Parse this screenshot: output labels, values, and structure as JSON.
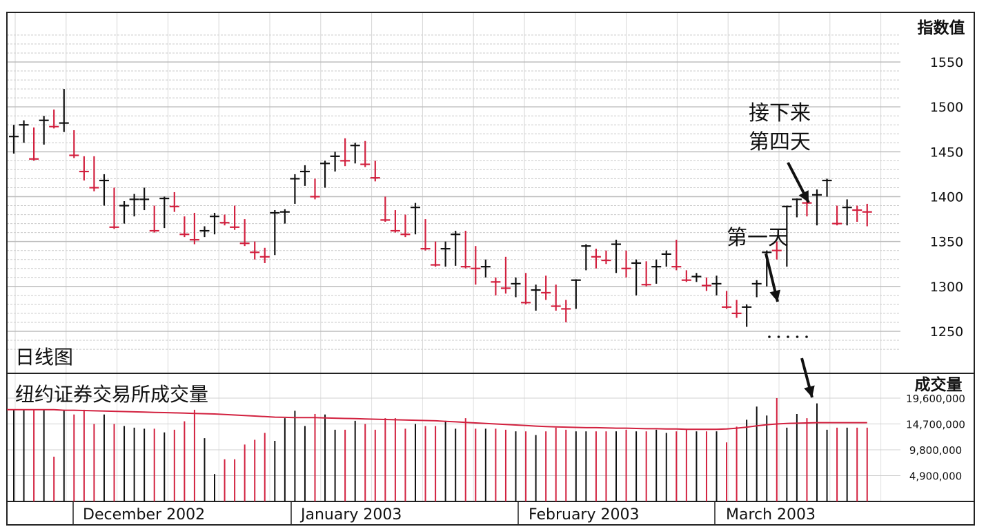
{
  "chart_data": [
    {
      "type": "ohlc",
      "y_axis_title": "指数值",
      "panel_label": "日线图",
      "yticks": [
        1250,
        1300,
        1350,
        1400,
        1450,
        1500,
        1550
      ],
      "ylim": [
        1215,
        1580
      ],
      "grid": true,
      "months": [
        "December 2002",
        "January 2003",
        "February 2003",
        "March 2003"
      ],
      "up_color": "#111111",
      "down_color": "#d2213f",
      "bars": [
        {
          "h": 1480,
          "l": 1448,
          "c": 1467,
          "dir": "up"
        },
        {
          "h": 1485,
          "l": 1460,
          "c": 1480,
          "dir": "up"
        },
        {
          "h": 1477,
          "l": 1440,
          "c": 1442,
          "dir": "down"
        },
        {
          "h": 1490,
          "l": 1458,
          "c": 1485,
          "dir": "up"
        },
        {
          "h": 1497,
          "l": 1476,
          "c": 1478,
          "dir": "down"
        },
        {
          "h": 1520,
          "l": 1472,
          "c": 1482,
          "dir": "up"
        },
        {
          "h": 1474,
          "l": 1443,
          "c": 1446,
          "dir": "down"
        },
        {
          "h": 1445,
          "l": 1418,
          "c": 1428,
          "dir": "down"
        },
        {
          "h": 1445,
          "l": 1406,
          "c": 1410,
          "dir": "down"
        },
        {
          "h": 1425,
          "l": 1390,
          "c": 1418,
          "dir": "up"
        },
        {
          "h": 1410,
          "l": 1364,
          "c": 1366,
          "dir": "down"
        },
        {
          "h": 1395,
          "l": 1370,
          "c": 1390,
          "dir": "up"
        },
        {
          "h": 1403,
          "l": 1378,
          "c": 1397,
          "dir": "up"
        },
        {
          "h": 1410,
          "l": 1385,
          "c": 1397,
          "dir": "up"
        },
        {
          "h": 1390,
          "l": 1360,
          "c": 1362,
          "dir": "down"
        },
        {
          "h": 1400,
          "l": 1365,
          "c": 1398,
          "dir": "up"
        },
        {
          "h": 1405,
          "l": 1383,
          "c": 1389,
          "dir": "down"
        },
        {
          "h": 1378,
          "l": 1355,
          "c": 1358,
          "dir": "down"
        },
        {
          "h": 1382,
          "l": 1347,
          "c": 1352,
          "dir": "down"
        },
        {
          "h": 1367,
          "l": 1355,
          "c": 1362,
          "dir": "up"
        },
        {
          "h": 1382,
          "l": 1358,
          "c": 1378,
          "dir": "up"
        },
        {
          "h": 1380,
          "l": 1368,
          "c": 1371,
          "dir": "down"
        },
        {
          "h": 1390,
          "l": 1363,
          "c": 1366,
          "dir": "down"
        },
        {
          "h": 1375,
          "l": 1345,
          "c": 1348,
          "dir": "down"
        },
        {
          "h": 1350,
          "l": 1330,
          "c": 1338,
          "dir": "down"
        },
        {
          "h": 1343,
          "l": 1326,
          "c": 1333,
          "dir": "down"
        },
        {
          "h": 1385,
          "l": 1335,
          "c": 1382,
          "dir": "up"
        },
        {
          "h": 1386,
          "l": 1370,
          "c": 1383,
          "dir": "up"
        },
        {
          "h": 1425,
          "l": 1392,
          "c": 1420,
          "dir": "up"
        },
        {
          "h": 1435,
          "l": 1412,
          "c": 1428,
          "dir": "up"
        },
        {
          "h": 1420,
          "l": 1397,
          "c": 1400,
          "dir": "down"
        },
        {
          "h": 1440,
          "l": 1410,
          "c": 1437,
          "dir": "up"
        },
        {
          "h": 1450,
          "l": 1428,
          "c": 1445,
          "dir": "up"
        },
        {
          "h": 1465,
          "l": 1434,
          "c": 1440,
          "dir": "down"
        },
        {
          "h": 1460,
          "l": 1437,
          "c": 1457,
          "dir": "up"
        },
        {
          "h": 1462,
          "l": 1433,
          "c": 1436,
          "dir": "down"
        },
        {
          "h": 1440,
          "l": 1417,
          "c": 1421,
          "dir": "down"
        },
        {
          "h": 1400,
          "l": 1372,
          "c": 1374,
          "dir": "down"
        },
        {
          "h": 1385,
          "l": 1360,
          "c": 1362,
          "dir": "down"
        },
        {
          "h": 1380,
          "l": 1355,
          "c": 1358,
          "dir": "down"
        },
        {
          "h": 1393,
          "l": 1358,
          "c": 1388,
          "dir": "up"
        },
        {
          "h": 1375,
          "l": 1340,
          "c": 1342,
          "dir": "down"
        },
        {
          "h": 1350,
          "l": 1322,
          "c": 1324,
          "dir": "down"
        },
        {
          "h": 1350,
          "l": 1322,
          "c": 1342,
          "dir": "up"
        },
        {
          "h": 1362,
          "l": 1323,
          "c": 1358,
          "dir": "up"
        },
        {
          "h": 1362,
          "l": 1320,
          "c": 1322,
          "dir": "down"
        },
        {
          "h": 1345,
          "l": 1302,
          "c": 1320,
          "dir": "down"
        },
        {
          "h": 1330,
          "l": 1310,
          "c": 1322,
          "dir": "up"
        },
        {
          "h": 1310,
          "l": 1290,
          "c": 1305,
          "dir": "down"
        },
        {
          "h": 1333,
          "l": 1292,
          "c": 1298,
          "dir": "down"
        },
        {
          "h": 1310,
          "l": 1288,
          "c": 1303,
          "dir": "up"
        },
        {
          "h": 1315,
          "l": 1280,
          "c": 1282,
          "dir": "down"
        },
        {
          "h": 1302,
          "l": 1273,
          "c": 1296,
          "dir": "up"
        },
        {
          "h": 1312,
          "l": 1285,
          "c": 1293,
          "dir": "down"
        },
        {
          "h": 1302,
          "l": 1273,
          "c": 1278,
          "dir": "down"
        },
        {
          "h": 1285,
          "l": 1260,
          "c": 1275,
          "dir": "down"
        },
        {
          "h": 1308,
          "l": 1275,
          "c": 1307,
          "dir": "up"
        },
        {
          "h": 1347,
          "l": 1318,
          "c": 1345,
          "dir": "up"
        },
        {
          "h": 1342,
          "l": 1320,
          "c": 1333,
          "dir": "down"
        },
        {
          "h": 1340,
          "l": 1325,
          "c": 1329,
          "dir": "down"
        },
        {
          "h": 1352,
          "l": 1315,
          "c": 1347,
          "dir": "up"
        },
        {
          "h": 1340,
          "l": 1310,
          "c": 1320,
          "dir": "down"
        },
        {
          "h": 1330,
          "l": 1290,
          "c": 1326,
          "dir": "up"
        },
        {
          "h": 1328,
          "l": 1300,
          "c": 1302,
          "dir": "down"
        },
        {
          "h": 1330,
          "l": 1303,
          "c": 1322,
          "dir": "up"
        },
        {
          "h": 1340,
          "l": 1322,
          "c": 1336,
          "dir": "up"
        },
        {
          "h": 1352,
          "l": 1318,
          "c": 1322,
          "dir": "down"
        },
        {
          "h": 1318,
          "l": 1305,
          "c": 1307,
          "dir": "down"
        },
        {
          "h": 1315,
          "l": 1305,
          "c": 1311,
          "dir": "up"
        },
        {
          "h": 1310,
          "l": 1295,
          "c": 1301,
          "dir": "down"
        },
        {
          "h": 1312,
          "l": 1290,
          "c": 1303,
          "dir": "up"
        },
        {
          "h": 1295,
          "l": 1275,
          "c": 1277,
          "dir": "down"
        },
        {
          "h": 1285,
          "l": 1265,
          "c": 1270,
          "dir": "down"
        },
        {
          "h": 1280,
          "l": 1255,
          "c": 1277,
          "dir": "up"
        },
        {
          "h": 1307,
          "l": 1288,
          "c": 1303,
          "dir": "up"
        },
        {
          "h": 1340,
          "l": 1300,
          "c": 1338,
          "dir": "up"
        },
        {
          "h": 1350,
          "l": 1330,
          "c": 1340,
          "dir": "down"
        },
        {
          "h": 1390,
          "l": 1322,
          "c": 1389,
          "dir": "up"
        },
        {
          "h": 1398,
          "l": 1377,
          "c": 1397,
          "dir": "up"
        },
        {
          "h": 1400,
          "l": 1378,
          "c": 1393,
          "dir": "down"
        },
        {
          "h": 1408,
          "l": 1368,
          "c": 1402,
          "dir": "up"
        },
        {
          "h": 1420,
          "l": 1400,
          "c": 1418,
          "dir": "up"
        },
        {
          "h": 1390,
          "l": 1368,
          "c": 1370,
          "dir": "down"
        },
        {
          "h": 1397,
          "l": 1368,
          "c": 1388,
          "dir": "up"
        },
        {
          "h": 1390,
          "l": 1372,
          "c": 1385,
          "dir": "down"
        },
        {
          "h": 1392,
          "l": 1367,
          "c": 1383,
          "dir": "down"
        }
      ],
      "annotations": [
        {
          "text_lines": [
            "接下来",
            "第四天"
          ],
          "bar_index": 77
        },
        {
          "text_lines": [
            "第一天"
          ],
          "bar_index": 73
        }
      ]
    },
    {
      "type": "bar",
      "title": "纽约证券交易所成交量",
      "y_axis_title": "成交量",
      "yticks": [
        4900000,
        9800000,
        14700000,
        19600000
      ],
      "ytick_labels": [
        "4,900,000",
        "9,800,000",
        "14,700,000",
        "19,600,000"
      ],
      "ylim": [
        0,
        21000000
      ],
      "values": [
        17400000,
        17400000,
        17400000,
        17400000,
        8500000,
        17400000,
        16500000,
        17400000,
        14700000,
        16500000,
        14700000,
        14300000,
        14000000,
        13800000,
        13800000,
        13100000,
        13600000,
        15200000,
        17400000,
        12000000,
        5200000,
        8000000,
        8000000,
        10800000,
        11700000,
        13000000,
        11500000,
        15800000,
        17200000,
        14300000,
        16600000,
        16500000,
        13600000,
        13600000,
        15300000,
        14700000,
        13600000,
        15800000,
        15800000,
        13800000,
        14700000,
        14300000,
        14300000,
        15300000,
        13800000,
        15800000,
        13800000,
        13800000,
        13800000,
        13600000,
        13300000,
        13300000,
        12600000,
        13300000,
        14000000,
        13600000,
        13300000,
        13300000,
        13300000,
        13300000,
        13300000,
        13600000,
        13300000,
        13300000,
        13600000,
        13000000,
        13300000,
        13600000,
        13300000,
        13300000,
        13300000,
        11200000,
        14200000,
        15500000,
        18000000,
        16300000,
        19600000,
        14000000,
        16600000,
        15800000,
        18600000,
        13600000,
        14000000,
        14000000,
        14000000,
        14000000
      ],
      "moving_average": [
        17400000,
        17400000,
        17400000,
        17400000,
        17400000,
        17300000,
        17300000,
        17250000,
        17200000,
        17150000,
        17100000,
        17050000,
        17000000,
        16950000,
        16900000,
        16850000,
        16800000,
        16750000,
        16700000,
        16650000,
        16600000,
        16500000,
        16400000,
        16300000,
        16200000,
        16100000,
        16000000,
        15950000,
        15900000,
        15900000,
        15900000,
        15850000,
        15800000,
        15750000,
        15700000,
        15650000,
        15600000,
        15550000,
        15500000,
        15450000,
        15400000,
        15350000,
        15300000,
        15200000,
        15100000,
        15000000,
        14900000,
        14800000,
        14700000,
        14600000,
        14500000,
        14400000,
        14300000,
        14200000,
        14150000,
        14100000,
        14050000,
        14000000,
        14000000,
        13950000,
        13900000,
        13900000,
        13850000,
        13800000,
        13800000,
        13750000,
        13750000,
        13700000,
        13700000,
        13700000,
        13700000,
        13750000,
        13900000,
        14100000,
        14350000,
        14550000,
        14700000,
        14800000,
        14850000,
        14900000,
        14950000,
        14950000,
        14950000,
        14950000,
        14950000,
        14950000
      ],
      "ma_color": "#d2213f"
    }
  ]
}
